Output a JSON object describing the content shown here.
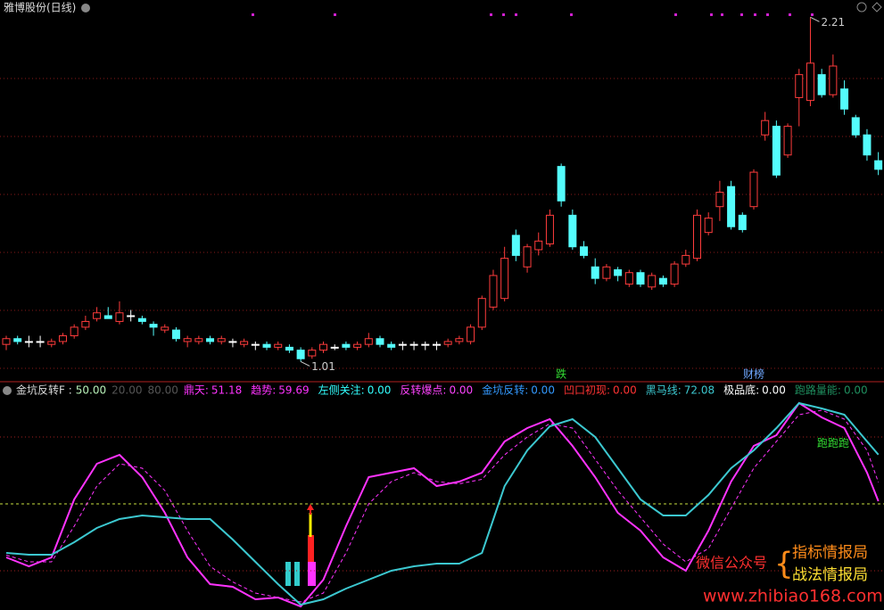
{
  "header": {
    "stock": "雅博股份(日线)"
  },
  "chart_data": [
    {
      "type": "candlestick",
      "open": [
        1.07,
        1.09,
        1.08,
        1.08,
        1.07,
        1.08,
        1.1,
        1.13,
        1.16,
        1.17,
        1.15,
        1.17,
        1.16,
        1.14,
        1.12,
        1.12,
        1.08,
        1.08,
        1.09,
        1.08,
        1.08,
        1.07,
        1.07,
        1.07,
        1.06,
        1.06,
        1.05,
        1.03,
        1.05,
        1.06,
        1.07,
        1.06,
        1.07,
        1.09,
        1.07,
        1.07,
        1.07,
        1.07,
        1.07,
        1.07,
        1.08,
        1.08,
        1.13,
        1.2,
        1.23,
        1.45,
        1.34,
        1.4,
        1.42,
        1.69,
        1.52,
        1.41,
        1.34,
        1.3,
        1.33,
        1.28,
        1.32,
        1.27,
        1.3,
        1.28,
        1.35,
        1.37,
        1.46,
        1.55,
        1.62,
        1.52,
        1.55,
        1.8,
        1.83,
        1.73,
        1.93,
        1.92,
        2.01,
        1.94,
        1.96,
        1.86,
        1.8,
        1.71
      ],
      "high": [
        1.1,
        1.1,
        1.1,
        1.1,
        1.09,
        1.11,
        1.14,
        1.17,
        1.2,
        1.2,
        1.22,
        1.19,
        1.17,
        1.15,
        1.14,
        1.13,
        1.1,
        1.1,
        1.1,
        1.1,
        1.09,
        1.09,
        1.08,
        1.08,
        1.08,
        1.07,
        1.06,
        1.06,
        1.08,
        1.07,
        1.08,
        1.08,
        1.11,
        1.1,
        1.08,
        1.08,
        1.08,
        1.08,
        1.08,
        1.09,
        1.1,
        1.14,
        1.24,
        1.33,
        1.41,
        1.47,
        1.42,
        1.46,
        1.54,
        1.7,
        1.54,
        1.43,
        1.37,
        1.35,
        1.34,
        1.33,
        1.33,
        1.32,
        1.31,
        1.36,
        1.4,
        1.54,
        1.53,
        1.64,
        1.64,
        1.53,
        1.68,
        1.88,
        1.85,
        1.84,
        2.03,
        2.21,
        2.03,
        2.08,
        1.99,
        1.87,
        1.82,
        1.74
      ],
      "low": [
        1.05,
        1.07,
        1.06,
        1.06,
        1.06,
        1.07,
        1.09,
        1.12,
        1.15,
        1.16,
        1.14,
        1.15,
        1.14,
        1.1,
        1.11,
        1.08,
        1.06,
        1.07,
        1.07,
        1.07,
        1.06,
        1.06,
        1.05,
        1.05,
        1.05,
        1.04,
        1.01,
        1.02,
        1.04,
        1.05,
        1.05,
        1.05,
        1.06,
        1.06,
        1.05,
        1.05,
        1.05,
        1.05,
        1.05,
        1.06,
        1.07,
        1.07,
        1.12,
        1.19,
        1.22,
        1.36,
        1.32,
        1.38,
        1.41,
        1.55,
        1.4,
        1.37,
        1.28,
        1.29,
        1.29,
        1.27,
        1.27,
        1.26,
        1.27,
        1.27,
        1.34,
        1.36,
        1.45,
        1.5,
        1.47,
        1.46,
        1.54,
        1.78,
        1.65,
        1.72,
        1.83,
        1.9,
        1.93,
        1.93,
        1.87,
        1.79,
        1.71,
        1.66
      ],
      "close": [
        1.09,
        1.08,
        1.08,
        1.08,
        1.08,
        1.1,
        1.13,
        1.15,
        1.18,
        1.16,
        1.18,
        1.17,
        1.15,
        1.13,
        1.13,
        1.09,
        1.09,
        1.09,
        1.08,
        1.09,
        1.08,
        1.08,
        1.07,
        1.06,
        1.07,
        1.05,
        1.02,
        1.05,
        1.07,
        1.06,
        1.06,
        1.07,
        1.09,
        1.07,
        1.06,
        1.07,
        1.07,
        1.07,
        1.07,
        1.08,
        1.09,
        1.13,
        1.23,
        1.31,
        1.37,
        1.38,
        1.41,
        1.43,
        1.52,
        1.57,
        1.41,
        1.38,
        1.3,
        1.34,
        1.31,
        1.32,
        1.28,
        1.31,
        1.28,
        1.35,
        1.38,
        1.52,
        1.51,
        1.6,
        1.48,
        1.47,
        1.67,
        1.85,
        1.66,
        1.83,
        2.01,
        2.05,
        1.94,
        2.04,
        1.89,
        1.8,
        1.73,
        1.68
      ],
      "ylim": [
        0.94,
        2.27
      ],
      "up_color": "#ff3c3c",
      "down_color": "#54fcfc",
      "flat_color": "#ffffff",
      "annotations": [
        {
          "index": 71,
          "value": 2.21
        },
        {
          "index": 26,
          "value": 1.01
        }
      ],
      "markers": [
        {
          "text": "跌",
          "index": 49,
          "color": "#33dd33"
        },
        {
          "text": "财榜",
          "index": 66,
          "color": "#6fa8ff"
        }
      ]
    },
    {
      "type": "line",
      "title": "金坑反转F :",
      "params": [
        {
          "value": 50,
          "label": "50.00"
        },
        {
          "value": 20,
          "label": "20.00"
        },
        {
          "value": 80,
          "label": "80.00"
        }
      ],
      "ylim": [
        2.4,
        103.2
      ],
      "xlim": [
        -0.5,
        77.5
      ],
      "x": [
        0,
        2,
        4,
        6,
        8,
        10,
        12,
        14,
        16,
        18,
        20,
        22,
        24,
        26,
        28,
        30,
        32,
        34,
        36,
        38,
        40,
        42,
        44,
        46,
        48,
        50,
        52,
        54,
        56,
        58,
        60,
        62,
        64,
        66,
        68,
        70,
        72,
        74,
        76,
        77
      ],
      "series": [
        {
          "name": "鼎天:",
          "color": "#ff33ff",
          "values": [
            26,
            22,
            26,
            52,
            68,
            72,
            62,
            46,
            26,
            14,
            12.8,
            7.2,
            8,
            4,
            16,
            40,
            62,
            64,
            66,
            58,
            60,
            64,
            78,
            84,
            88,
            76,
            62,
            46,
            38,
            26,
            20,
            38,
            60,
            76,
            80.8,
            95.2,
            88.8,
            84,
            64,
            51.18
          ]
        },
        {
          "name": "趋势:",
          "color": "#ff33ff",
          "dash": true,
          "values": [
            27,
            24,
            24,
            40,
            58,
            68,
            66,
            56,
            38,
            22,
            15,
            10,
            8,
            6,
            10,
            28,
            50,
            60,
            64,
            60,
            59,
            61,
            72,
            80,
            86,
            84,
            70,
            56,
            44,
            32,
            24,
            30,
            48,
            66,
            78,
            90,
            92,
            88,
            74,
            59.69
          ]
        },
        {
          "name": "左侧关注:",
          "color": "#33ffff",
          "value_label": "0.00"
        },
        {
          "name": "反转爆点:",
          "color": "#ff44ff",
          "value_label": "0.00"
        },
        {
          "name": "金坑反转:",
          "color": "#3399ff",
          "value_label": "0.00"
        },
        {
          "name": "凹口初现:",
          "color": "#ff3333",
          "value_label": "0.00"
        },
        {
          "name": "黑马线:",
          "color": "#3cc8d0",
          "values": [
            28,
            27.2,
            27.2,
            32.8,
            39.2,
            43.2,
            44.8,
            44,
            43.2,
            43.2,
            34,
            24,
            14,
            4.8,
            7.2,
            12,
            16,
            20,
            22,
            23.2,
            23.2,
            28,
            58,
            74,
            84.8,
            88,
            80,
            66,
            52,
            44.8,
            44.8,
            54,
            66,
            74,
            84,
            95.2,
            92.8,
            90,
            78,
            72.08
          ]
        },
        {
          "name": "极品底:",
          "color": "#ffffff",
          "value_label": "0.00"
        },
        {
          "name": "跑路量能:",
          "color": "#1f8f5f",
          "value_label": "0.00"
        }
      ],
      "annotation": {
        "text": "跑跑跑",
        "x": 73,
        "value": 77
      }
    }
  ],
  "watermark": {
    "label": "微信公众号",
    "brand1": "指标情报局",
    "brand2": "战法情报局",
    "url": "www.zhibiao168.com"
  }
}
